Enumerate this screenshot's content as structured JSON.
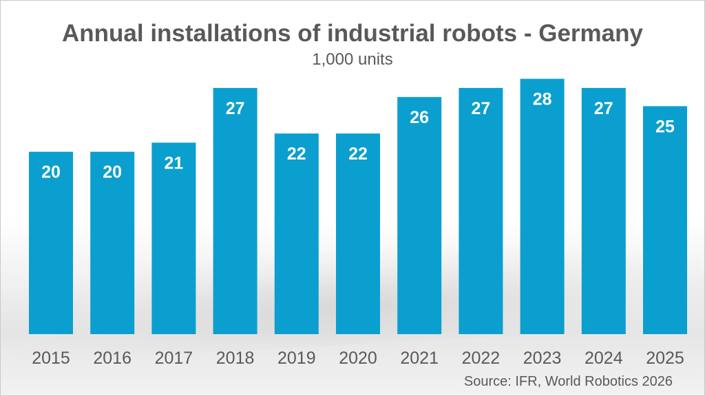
{
  "chart_data": {
    "type": "bar",
    "title": "Annual installations of industrial robots - Germany",
    "subtitle": "1,000 units",
    "source": "Source: IFR, World Robotics 2026",
    "categories": [
      "2015",
      "2016",
      "2017",
      "2018",
      "2019",
      "2020",
      "2021",
      "2022",
      "2023",
      "2024",
      "2025"
    ],
    "values": [
      20,
      20,
      21,
      27,
      22,
      22,
      26,
      27,
      28,
      27,
      25
    ],
    "value_labels": [
      "20",
      "20",
      "21",
      "27",
      "22",
      "22",
      "26",
      "27",
      "28",
      "27",
      "25"
    ],
    "bar_color": "#0a9fce",
    "label_color": "#ffffff",
    "axis_text_color": "#595959",
    "ylim": [
      0,
      28.5
    ],
    "grid": false,
    "legend": "none"
  }
}
